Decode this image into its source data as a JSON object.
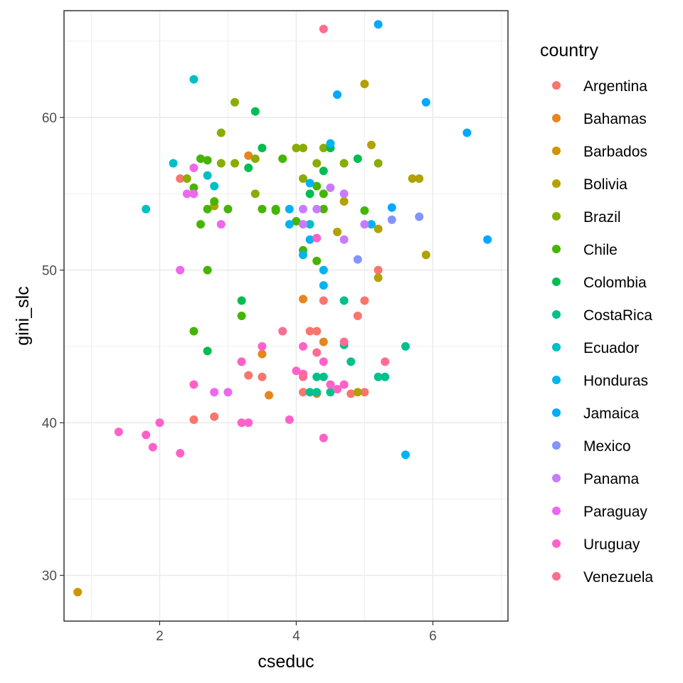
{
  "chart_data": {
    "type": "scatter",
    "title": "",
    "xlabel": "cseduc",
    "ylabel": "gini_slc",
    "xlim": [
      0.6,
      7.1
    ],
    "ylim": [
      27,
      67
    ],
    "x_ticks": [
      2,
      4,
      6
    ],
    "y_ticks": [
      30,
      40,
      50,
      60
    ],
    "grid": true,
    "legend": {
      "title": "country",
      "placement": "right"
    },
    "series": [
      {
        "name": "Argentina",
        "color": "#F8766D",
        "points": [
          [
            2.3,
            56
          ],
          [
            2.5,
            40.2
          ],
          [
            2.8,
            40.4
          ],
          [
            3.3,
            43.1
          ],
          [
            3.5,
            43
          ],
          [
            4.1,
            42
          ],
          [
            4.2,
            46
          ],
          [
            4.3,
            46
          ],
          [
            4.4,
            48
          ],
          [
            4.8,
            41.9
          ],
          [
            5.0,
            48
          ],
          [
            5.0,
            42
          ],
          [
            5.2,
            50
          ],
          [
            4.9,
            47
          ]
        ]
      },
      {
        "name": "Bahamas",
        "color": "#E7851E",
        "points": [
          [
            3.3,
            57.5
          ],
          [
            4.1,
            48.1
          ],
          [
            4.4,
            45.3
          ],
          [
            3.5,
            44.5
          ],
          [
            3.6,
            41.8
          ],
          [
            4.3,
            41.9
          ]
        ]
      },
      {
        "name": "Barbados",
        "color": "#D09400",
        "points": [
          [
            0.8,
            28.9
          ]
        ]
      },
      {
        "name": "Bolivia",
        "color": "#B2A100",
        "points": [
          [
            5.0,
            62.2
          ],
          [
            5.1,
            58.2
          ],
          [
            5.7,
            56
          ],
          [
            5.8,
            56
          ],
          [
            4.7,
            54.5
          ],
          [
            4.6,
            52.5
          ],
          [
            5.2,
            52.7
          ],
          [
            5.2,
            49.5
          ],
          [
            5.9,
            51
          ],
          [
            4.9,
            42
          ],
          [
            2.8,
            54.2
          ]
        ]
      },
      {
        "name": "Brazil",
        "color": "#89AC00",
        "points": [
          [
            2.9,
            59
          ],
          [
            3.1,
            61
          ],
          [
            2.4,
            56
          ],
          [
            2.9,
            57
          ],
          [
            3.1,
            57
          ],
          [
            3.4,
            57.3
          ],
          [
            4.0,
            58
          ],
          [
            4.1,
            58
          ],
          [
            4.4,
            58
          ],
          [
            4.3,
            57
          ],
          [
            4.7,
            57
          ],
          [
            5.2,
            57
          ],
          [
            4.1,
            56
          ],
          [
            3.4,
            55
          ]
        ]
      },
      {
        "name": "Chile",
        "color": "#45B500",
        "points": [
          [
            2.6,
            57.3
          ],
          [
            2.7,
            57.2
          ],
          [
            2.5,
            55.4
          ],
          [
            2.8,
            54.5
          ],
          [
            2.7,
            54
          ],
          [
            3.0,
            54
          ],
          [
            3.5,
            54
          ],
          [
            3.7,
            53.9
          ],
          [
            3.8,
            57.3
          ],
          [
            4.0,
            53.2
          ],
          [
            4.1,
            51.3
          ],
          [
            4.3,
            50.6
          ],
          [
            2.7,
            50
          ],
          [
            3.2,
            47
          ],
          [
            2.5,
            46
          ],
          [
            2.6,
            53
          ],
          [
            3.7,
            54
          ],
          [
            4.4,
            55
          ],
          [
            4.3,
            55.5
          ],
          [
            4.4,
            54
          ],
          [
            5.0,
            53.9
          ]
        ]
      },
      {
        "name": "Colombia",
        "color": "#00BC51",
        "points": [
          [
            3.4,
            60.4
          ],
          [
            3.5,
            58
          ],
          [
            4.5,
            58
          ],
          [
            4.4,
            56.5
          ],
          [
            4.9,
            57.3
          ],
          [
            3.3,
            56.7
          ],
          [
            4.2,
            55
          ],
          [
            3.2,
            48
          ],
          [
            2.7,
            44.7
          ]
        ]
      },
      {
        "name": "CostaRica",
        "color": "#00C08B",
        "points": [
          [
            4.3,
            43
          ],
          [
            4.4,
            43
          ],
          [
            4.7,
            45.1
          ],
          [
            4.8,
            44
          ],
          [
            4.7,
            48
          ],
          [
            5.2,
            43
          ],
          [
            5.3,
            43
          ],
          [
            5.6,
            45
          ],
          [
            4.2,
            42
          ],
          [
            4.3,
            42
          ],
          [
            4.5,
            42
          ]
        ]
      },
      {
        "name": "Ecuador",
        "color": "#00BFC4",
        "points": [
          [
            2.5,
            62.5
          ],
          [
            2.2,
            57
          ],
          [
            2.8,
            55.5
          ],
          [
            2.7,
            56.2
          ],
          [
            1.8,
            54
          ],
          [
            3.2,
            44
          ],
          [
            4.2,
            53
          ]
        ]
      },
      {
        "name": "Honduras",
        "color": "#00B4F0",
        "points": [
          [
            4.5,
            58.3
          ],
          [
            4.2,
            55.7
          ],
          [
            3.9,
            54
          ],
          [
            3.9,
            53
          ],
          [
            4.2,
            52
          ],
          [
            4.1,
            51
          ],
          [
            4.4,
            50
          ],
          [
            4.4,
            49
          ],
          [
            5.6,
            37.9
          ],
          [
            5.1,
            53
          ]
        ]
      },
      {
        "name": "Jamaica",
        "color": "#00A9FF",
        "points": [
          [
            5.2,
            66.1
          ],
          [
            4.6,
            61.5
          ],
          [
            5.9,
            61
          ],
          [
            6.5,
            59
          ],
          [
            6.8,
            52
          ],
          [
            5.4,
            54.1
          ]
        ]
      },
      {
        "name": "Mexico",
        "color": "#8494FF",
        "points": [
          [
            5.8,
            53.5
          ],
          [
            5.4,
            53.3
          ],
          [
            4.9,
            50.7
          ]
        ]
      },
      {
        "name": "Panama",
        "color": "#C77CFF",
        "points": [
          [
            4.5,
            55.4
          ],
          [
            4.7,
            55
          ],
          [
            4.1,
            54
          ],
          [
            4.3,
            54
          ],
          [
            4.1,
            53
          ],
          [
            5.0,
            53
          ],
          [
            4.7,
            52
          ]
        ]
      },
      {
        "name": "Paraguay",
        "color": "#ED68ED",
        "points": [
          [
            2.5,
            56.7
          ],
          [
            2.4,
            55
          ],
          [
            2.5,
            55
          ],
          [
            2.9,
            53
          ],
          [
            2.3,
            50
          ],
          [
            2.8,
            42
          ],
          [
            3.0,
            42
          ]
        ]
      },
      {
        "name": "Uruguay",
        "color": "#FF61C9",
        "points": [
          [
            1.4,
            39.4
          ],
          [
            1.8,
            39.2
          ],
          [
            1.9,
            38.4
          ],
          [
            2.0,
            40
          ],
          [
            2.3,
            38
          ],
          [
            3.2,
            40
          ],
          [
            3.3,
            40
          ],
          [
            3.9,
            40.2
          ],
          [
            4.4,
            39
          ],
          [
            4.0,
            43.4
          ],
          [
            4.1,
            43.2
          ],
          [
            4.4,
            44
          ],
          [
            4.5,
            42.5
          ],
          [
            4.7,
            42.5
          ],
          [
            4.6,
            42.2
          ],
          [
            2.5,
            42.5
          ],
          [
            3.5,
            45
          ],
          [
            4.1,
            45
          ],
          [
            3.2,
            44
          ],
          [
            4.3,
            52.1
          ]
        ]
      },
      {
        "name": "Venezuela",
        "color": "#FF6C91",
        "points": [
          [
            4.4,
            65.8
          ],
          [
            3.8,
            46
          ],
          [
            4.1,
            43
          ],
          [
            4.3,
            44.6
          ],
          [
            4.7,
            45.3
          ],
          [
            5.3,
            44
          ]
        ]
      }
    ]
  }
}
